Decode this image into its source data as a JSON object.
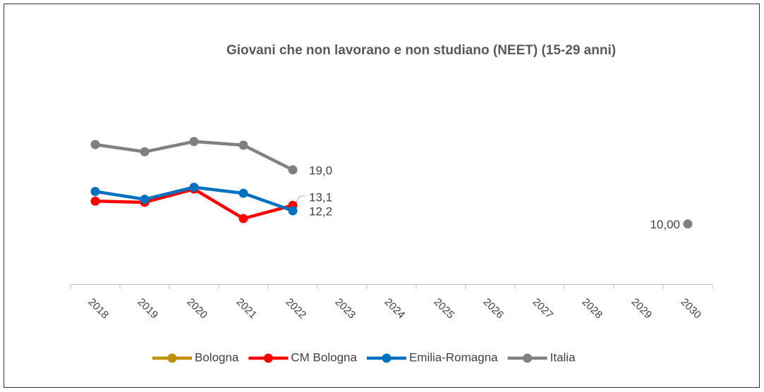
{
  "chart_data": {
    "type": "line",
    "title": "Giovani che non lavorano e non studiano (NEET) (15-29 anni)",
    "categories": [
      "2018",
      "2019",
      "2020",
      "2021",
      "2022",
      "2023",
      "2024",
      "2025",
      "2026",
      "2027",
      "2028",
      "2029",
      "2030"
    ],
    "ylim": [
      0,
      30
    ],
    "series": [
      {
        "name": "Bologna",
        "color": "#bf9000",
        "values": [
          null,
          null,
          null,
          null,
          null,
          null,
          null,
          null,
          null,
          null,
          null,
          null,
          null
        ]
      },
      {
        "name": "CM Bologna",
        "color": "#ff0000",
        "values": [
          13.8,
          13.6,
          15.8,
          10.9,
          13.1,
          null,
          null,
          null,
          null,
          null,
          null,
          null,
          null
        ],
        "value_labels": [
          null,
          null,
          null,
          null,
          "13,1",
          null,
          null,
          null,
          null,
          null,
          null,
          null,
          null
        ]
      },
      {
        "name": "Emilia-Romagna",
        "color": "#0070c0",
        "values": [
          15.4,
          14.1,
          16.1,
          15.1,
          12.2,
          null,
          null,
          null,
          null,
          null,
          null,
          null,
          null
        ],
        "value_labels": [
          null,
          null,
          null,
          null,
          "12,2",
          null,
          null,
          null,
          null,
          null,
          null,
          null,
          null
        ]
      },
      {
        "name": "Italia",
        "color": "#808080",
        "values": [
          23.2,
          22.0,
          23.7,
          23.1,
          19.0,
          null,
          null,
          null,
          null,
          null,
          null,
          null,
          10.0
        ],
        "value_labels": [
          null,
          null,
          null,
          null,
          "19,0",
          null,
          null,
          null,
          null,
          null,
          null,
          null,
          "10,00"
        ]
      }
    ]
  }
}
